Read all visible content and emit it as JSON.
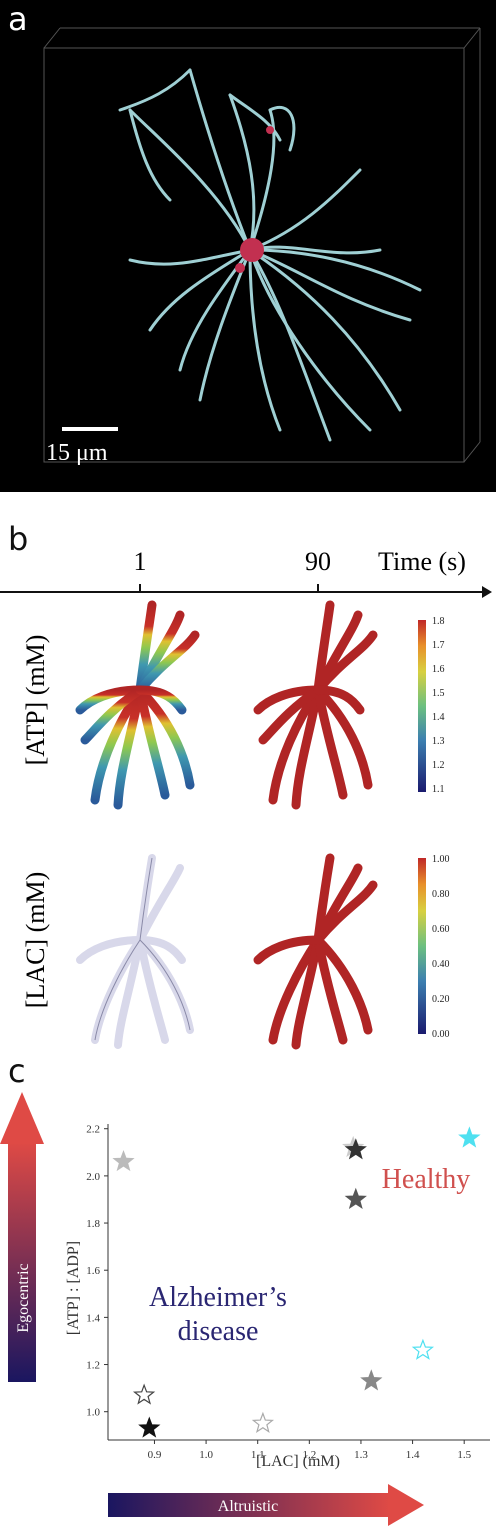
{
  "panel_a": {
    "label": "a",
    "scale_bar": "15 μm"
  },
  "panel_b": {
    "label": "b",
    "timeline": {
      "ticks": [
        "1",
        "90"
      ],
      "axis_label": "Time (s)"
    },
    "rows": [
      {
        "ylabel": "[ATP] (mM)",
        "colorbar_ticks": [
          "1.8",
          "1.7",
          "1.6",
          "1.5",
          "1.4",
          "1.3",
          "1.2",
          "1.1"
        ]
      },
      {
        "ylabel": "[LAC] (mM)",
        "colorbar_ticks": [
          "1.00",
          "0.80",
          "0.60",
          "0.40",
          "0.20",
          "0.00"
        ]
      }
    ]
  },
  "panel_c": {
    "label": "c",
    "left_arrow_label": "Egocentric",
    "bottom_arrow_label": "Altruistic",
    "region_labels": {
      "healthy": "Healthy",
      "alzheimers_line1": "Alzheimer’s",
      "alzheimers_line2": "disease"
    },
    "colors": {
      "healthy": "#d0504e",
      "alzheimers": "#2a2672",
      "cyan": "#4fe0f0",
      "gradient_start": "#1a1660",
      "gradient_end": "#df4a45"
    }
  },
  "chart_data": {
    "type": "scatter",
    "xlabel": "[LAC] (mM)",
    "ylabel": "[ATP] : [ADP]",
    "xlim": [
      0.81,
      1.55
    ],
    "ylim": [
      0.88,
      2.22
    ],
    "x_ticks": [
      "0.9",
      "1.0",
      "1.1",
      "1.2",
      "1.3",
      "1.4",
      "1.5"
    ],
    "y_ticks": [
      "1.0",
      "1.2",
      "1.4",
      "1.6",
      "1.8",
      "2.0",
      "2.2"
    ],
    "grid": false,
    "marker": "star",
    "points": [
      {
        "x": 0.84,
        "y": 2.06,
        "color": "#bbbbbb",
        "filled": true
      },
      {
        "x": 1.285,
        "y": 2.12,
        "color": "#cccccc",
        "filled": true
      },
      {
        "x": 1.29,
        "y": 2.11,
        "color": "#333333",
        "filled": true
      },
      {
        "x": 1.29,
        "y": 1.9,
        "color": "#555555",
        "filled": true
      },
      {
        "x": 1.51,
        "y": 2.16,
        "color": "#4fe0f0",
        "filled": true
      },
      {
        "x": 1.42,
        "y": 1.26,
        "color": "#4fe0f0",
        "filled": false
      },
      {
        "x": 1.32,
        "y": 1.13,
        "color": "#888888",
        "filled": true
      },
      {
        "x": 0.88,
        "y": 1.07,
        "color": "#444444",
        "filled": false
      },
      {
        "x": 0.89,
        "y": 0.93,
        "color": "#111111",
        "filled": true
      },
      {
        "x": 1.11,
        "y": 0.95,
        "color": "#aaaaaa",
        "filled": false
      }
    ]
  }
}
